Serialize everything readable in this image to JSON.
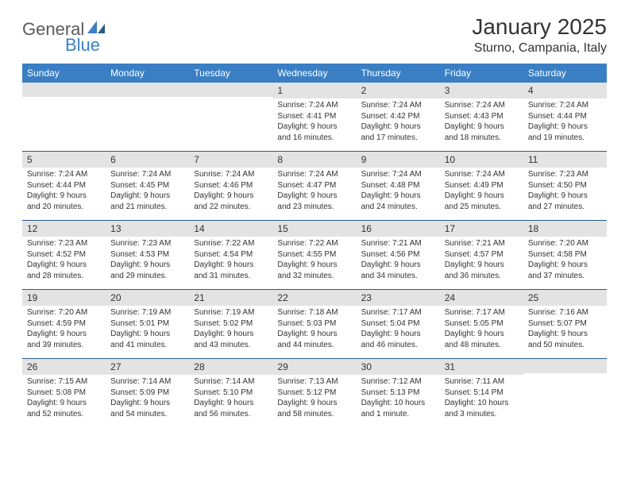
{
  "logo": {
    "text1": "General",
    "text2": "Blue"
  },
  "title": "January 2025",
  "location": "Sturno, Campania, Italy",
  "colors": {
    "header_bg": "#3a7fc4",
    "header_text": "#ffffff",
    "daynum_bg": "#e3e3e3",
    "rule": "#2a5a8a",
    "body_text": "#333333",
    "logo_gray": "#5a5a5a",
    "logo_blue": "#3a7fc4"
  },
  "weekdays": [
    "Sunday",
    "Monday",
    "Tuesday",
    "Wednesday",
    "Thursday",
    "Friday",
    "Saturday"
  ],
  "weeks": [
    [
      {
        "n": "",
        "sr": "",
        "ss": "",
        "dl1": "",
        "dl2": ""
      },
      {
        "n": "",
        "sr": "",
        "ss": "",
        "dl1": "",
        "dl2": ""
      },
      {
        "n": "",
        "sr": "",
        "ss": "",
        "dl1": "",
        "dl2": ""
      },
      {
        "n": "1",
        "sr": "Sunrise: 7:24 AM",
        "ss": "Sunset: 4:41 PM",
        "dl1": "Daylight: 9 hours",
        "dl2": "and 16 minutes."
      },
      {
        "n": "2",
        "sr": "Sunrise: 7:24 AM",
        "ss": "Sunset: 4:42 PM",
        "dl1": "Daylight: 9 hours",
        "dl2": "and 17 minutes."
      },
      {
        "n": "3",
        "sr": "Sunrise: 7:24 AM",
        "ss": "Sunset: 4:43 PM",
        "dl1": "Daylight: 9 hours",
        "dl2": "and 18 minutes."
      },
      {
        "n": "4",
        "sr": "Sunrise: 7:24 AM",
        "ss": "Sunset: 4:44 PM",
        "dl1": "Daylight: 9 hours",
        "dl2": "and 19 minutes."
      }
    ],
    [
      {
        "n": "5",
        "sr": "Sunrise: 7:24 AM",
        "ss": "Sunset: 4:44 PM",
        "dl1": "Daylight: 9 hours",
        "dl2": "and 20 minutes."
      },
      {
        "n": "6",
        "sr": "Sunrise: 7:24 AM",
        "ss": "Sunset: 4:45 PM",
        "dl1": "Daylight: 9 hours",
        "dl2": "and 21 minutes."
      },
      {
        "n": "7",
        "sr": "Sunrise: 7:24 AM",
        "ss": "Sunset: 4:46 PM",
        "dl1": "Daylight: 9 hours",
        "dl2": "and 22 minutes."
      },
      {
        "n": "8",
        "sr": "Sunrise: 7:24 AM",
        "ss": "Sunset: 4:47 PM",
        "dl1": "Daylight: 9 hours",
        "dl2": "and 23 minutes."
      },
      {
        "n": "9",
        "sr": "Sunrise: 7:24 AM",
        "ss": "Sunset: 4:48 PM",
        "dl1": "Daylight: 9 hours",
        "dl2": "and 24 minutes."
      },
      {
        "n": "10",
        "sr": "Sunrise: 7:24 AM",
        "ss": "Sunset: 4:49 PM",
        "dl1": "Daylight: 9 hours",
        "dl2": "and 25 minutes."
      },
      {
        "n": "11",
        "sr": "Sunrise: 7:23 AM",
        "ss": "Sunset: 4:50 PM",
        "dl1": "Daylight: 9 hours",
        "dl2": "and 27 minutes."
      }
    ],
    [
      {
        "n": "12",
        "sr": "Sunrise: 7:23 AM",
        "ss": "Sunset: 4:52 PM",
        "dl1": "Daylight: 9 hours",
        "dl2": "and 28 minutes."
      },
      {
        "n": "13",
        "sr": "Sunrise: 7:23 AM",
        "ss": "Sunset: 4:53 PM",
        "dl1": "Daylight: 9 hours",
        "dl2": "and 29 minutes."
      },
      {
        "n": "14",
        "sr": "Sunrise: 7:22 AM",
        "ss": "Sunset: 4:54 PM",
        "dl1": "Daylight: 9 hours",
        "dl2": "and 31 minutes."
      },
      {
        "n": "15",
        "sr": "Sunrise: 7:22 AM",
        "ss": "Sunset: 4:55 PM",
        "dl1": "Daylight: 9 hours",
        "dl2": "and 32 minutes."
      },
      {
        "n": "16",
        "sr": "Sunrise: 7:21 AM",
        "ss": "Sunset: 4:56 PM",
        "dl1": "Daylight: 9 hours",
        "dl2": "and 34 minutes."
      },
      {
        "n": "17",
        "sr": "Sunrise: 7:21 AM",
        "ss": "Sunset: 4:57 PM",
        "dl1": "Daylight: 9 hours",
        "dl2": "and 36 minutes."
      },
      {
        "n": "18",
        "sr": "Sunrise: 7:20 AM",
        "ss": "Sunset: 4:58 PM",
        "dl1": "Daylight: 9 hours",
        "dl2": "and 37 minutes."
      }
    ],
    [
      {
        "n": "19",
        "sr": "Sunrise: 7:20 AM",
        "ss": "Sunset: 4:59 PM",
        "dl1": "Daylight: 9 hours",
        "dl2": "and 39 minutes."
      },
      {
        "n": "20",
        "sr": "Sunrise: 7:19 AM",
        "ss": "Sunset: 5:01 PM",
        "dl1": "Daylight: 9 hours",
        "dl2": "and 41 minutes."
      },
      {
        "n": "21",
        "sr": "Sunrise: 7:19 AM",
        "ss": "Sunset: 5:02 PM",
        "dl1": "Daylight: 9 hours",
        "dl2": "and 43 minutes."
      },
      {
        "n": "22",
        "sr": "Sunrise: 7:18 AM",
        "ss": "Sunset: 5:03 PM",
        "dl1": "Daylight: 9 hours",
        "dl2": "and 44 minutes."
      },
      {
        "n": "23",
        "sr": "Sunrise: 7:17 AM",
        "ss": "Sunset: 5:04 PM",
        "dl1": "Daylight: 9 hours",
        "dl2": "and 46 minutes."
      },
      {
        "n": "24",
        "sr": "Sunrise: 7:17 AM",
        "ss": "Sunset: 5:05 PM",
        "dl1": "Daylight: 9 hours",
        "dl2": "and 48 minutes."
      },
      {
        "n": "25",
        "sr": "Sunrise: 7:16 AM",
        "ss": "Sunset: 5:07 PM",
        "dl1": "Daylight: 9 hours",
        "dl2": "and 50 minutes."
      }
    ],
    [
      {
        "n": "26",
        "sr": "Sunrise: 7:15 AM",
        "ss": "Sunset: 5:08 PM",
        "dl1": "Daylight: 9 hours",
        "dl2": "and 52 minutes."
      },
      {
        "n": "27",
        "sr": "Sunrise: 7:14 AM",
        "ss": "Sunset: 5:09 PM",
        "dl1": "Daylight: 9 hours",
        "dl2": "and 54 minutes."
      },
      {
        "n": "28",
        "sr": "Sunrise: 7:14 AM",
        "ss": "Sunset: 5:10 PM",
        "dl1": "Daylight: 9 hours",
        "dl2": "and 56 minutes."
      },
      {
        "n": "29",
        "sr": "Sunrise: 7:13 AM",
        "ss": "Sunset: 5:12 PM",
        "dl1": "Daylight: 9 hours",
        "dl2": "and 58 minutes."
      },
      {
        "n": "30",
        "sr": "Sunrise: 7:12 AM",
        "ss": "Sunset: 5:13 PM",
        "dl1": "Daylight: 10 hours",
        "dl2": "and 1 minute."
      },
      {
        "n": "31",
        "sr": "Sunrise: 7:11 AM",
        "ss": "Sunset: 5:14 PM",
        "dl1": "Daylight: 10 hours",
        "dl2": "and 3 minutes."
      },
      {
        "n": "",
        "sr": "",
        "ss": "",
        "dl1": "",
        "dl2": ""
      }
    ]
  ]
}
